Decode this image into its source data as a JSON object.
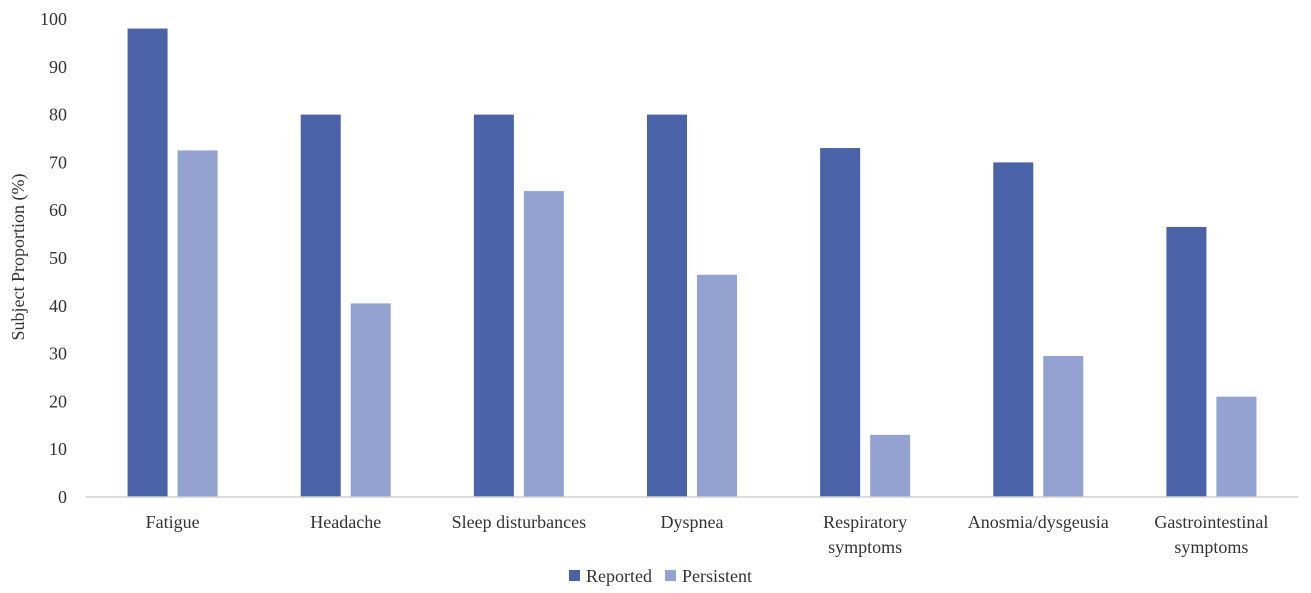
{
  "chart_data": {
    "type": "bar",
    "categories": [
      [
        "Fatigue"
      ],
      [
        "Headache"
      ],
      [
        "Sleep disturbances"
      ],
      [
        "Dyspnea"
      ],
      [
        "Respiratory",
        "symptoms"
      ],
      [
        "Anosmia/dysgeusia"
      ],
      [
        "Gastrointestinal",
        "symptoms"
      ]
    ],
    "series": [
      {
        "name": "Reported",
        "color": "#4a63a8",
        "values": [
          98,
          80,
          80,
          80,
          73,
          70,
          56.5
        ]
      },
      {
        "name": "Persistent",
        "color": "#93a2d0",
        "values": [
          72.5,
          40.5,
          64,
          46.5,
          13,
          29.5,
          21
        ]
      }
    ],
    "ylabel": "Subject Proportion (%)",
    "ylim": [
      0,
      100
    ],
    "yticks": [
      0,
      10,
      20,
      30,
      40,
      50,
      60,
      70,
      80,
      90,
      100
    ],
    "grid": false,
    "legend": "bottom-center"
  }
}
